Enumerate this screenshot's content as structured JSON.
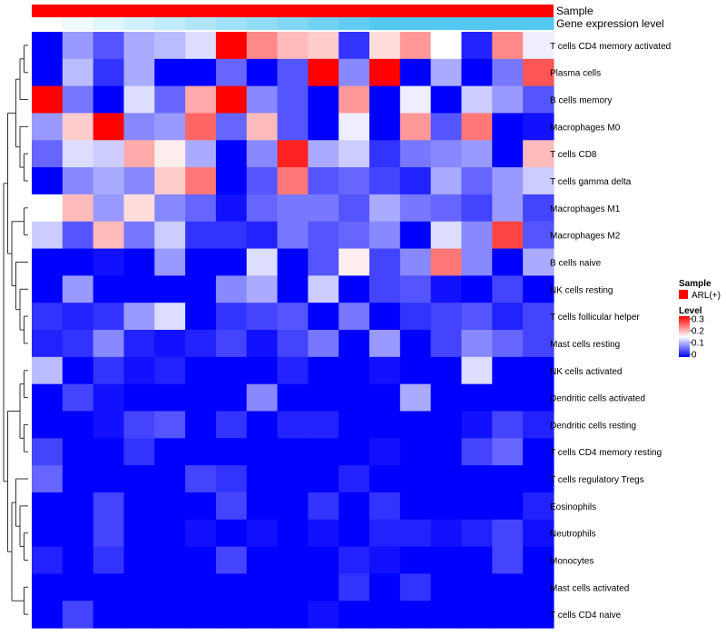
{
  "chart_data": {
    "type": "heatmap",
    "title": "",
    "annotation_tracks": [
      {
        "name": "Sample",
        "color": "#ff0000"
      },
      {
        "name": "Gene expression level",
        "gradient_start": "#ffffff",
        "gradient_end": "#53c8f0"
      }
    ],
    "rows": [
      "T cells CD4 memory activated",
      "Plasma cells",
      "B cells memory",
      "Macrophages M0",
      "T cells CD8",
      "T cells gamma delta",
      "Macrophages M1",
      "Macrophages M2",
      "B cells naive",
      "NK cells resting",
      "T cells follicular helper",
      "Mast cells resting",
      "NK cells activated",
      "Dendritic cells activated",
      "Dendritic cells resting",
      "T cells CD4 memory resting",
      "T cells regulatory  Tregs",
      "Eosinophils",
      "Neutrophils",
      "Monocytes",
      "Mast cells activated",
      "T cells CD4 naive"
    ],
    "n_columns": 17,
    "values": [
      [
        0.0,
        0.09,
        0.05,
        0.1,
        0.11,
        0.13,
        0.3,
        0.22,
        0.19,
        0.18,
        0.03,
        0.17,
        0.21,
        0.15,
        0.02,
        0.22,
        0.14
      ],
      [
        0.0,
        0.11,
        0.03,
        0.1,
        0.0,
        0.0,
        0.06,
        0.0,
        0.05,
        0.3,
        0.08,
        0.3,
        0.0,
        0.1,
        0.0,
        0.07,
        0.25
      ],
      [
        0.3,
        0.07,
        0.0,
        0.13,
        0.06,
        0.2,
        0.3,
        0.08,
        0.05,
        0.0,
        0.21,
        0.0,
        0.14,
        0.0,
        0.12,
        0.09,
        0.05
      ],
      [
        0.09,
        0.18,
        0.3,
        0.08,
        0.09,
        0.24,
        0.06,
        0.19,
        0.05,
        0.0,
        0.14,
        0.0,
        0.21,
        0.05,
        0.23,
        0.0,
        0.01
      ],
      [
        0.06,
        0.13,
        0.12,
        0.2,
        0.16,
        0.1,
        0.0,
        0.08,
        0.28,
        0.1,
        0.12,
        0.03,
        0.07,
        0.08,
        0.09,
        0.0,
        0.19
      ],
      [
        0.0,
        0.08,
        0.1,
        0.08,
        0.18,
        0.23,
        0.0,
        0.05,
        0.23,
        0.05,
        0.06,
        0.04,
        0.02,
        0.1,
        0.06,
        0.09,
        0.12
      ],
      [
        0.15,
        0.19,
        0.09,
        0.17,
        0.08,
        0.06,
        0.01,
        0.06,
        0.07,
        0.07,
        0.05,
        0.1,
        0.07,
        0.06,
        0.04,
        0.09,
        0.04
      ],
      [
        0.12,
        0.05,
        0.19,
        0.07,
        0.12,
        0.03,
        0.03,
        0.02,
        0.07,
        0.05,
        0.06,
        0.08,
        0.0,
        0.13,
        0.08,
        0.26,
        0.05
      ],
      [
        0.0,
        0.0,
        0.01,
        0.0,
        0.09,
        0.0,
        0.0,
        0.13,
        0.0,
        0.05,
        0.16,
        0.04,
        0.08,
        0.23,
        0.08,
        0.0,
        0.1
      ],
      [
        0.0,
        0.09,
        0.0,
        0.0,
        0.0,
        0.0,
        0.08,
        0.1,
        0.0,
        0.12,
        0.0,
        0.04,
        0.05,
        0.01,
        0.0,
        0.04,
        0.0
      ],
      [
        0.03,
        0.02,
        0.03,
        0.09,
        0.13,
        0.0,
        0.03,
        0.04,
        0.05,
        0.0,
        0.07,
        0.0,
        0.03,
        0.04,
        0.05,
        0.02,
        0.04
      ],
      [
        0.02,
        0.03,
        0.08,
        0.02,
        0.01,
        0.02,
        0.04,
        0.01,
        0.04,
        0.07,
        0.0,
        0.09,
        0.0,
        0.04,
        0.08,
        0.06,
        0.04
      ],
      [
        0.11,
        0.0,
        0.03,
        0.01,
        0.02,
        0.0,
        0.0,
        0.0,
        0.02,
        0.0,
        0.0,
        0.01,
        0.0,
        0.0,
        0.13,
        0.0,
        0.0
      ],
      [
        0.0,
        0.04,
        0.01,
        0.0,
        0.0,
        0.0,
        0.0,
        0.08,
        0.0,
        0.0,
        0.0,
        0.0,
        0.1,
        0.0,
        0.0,
        0.0,
        0.0
      ],
      [
        0.0,
        0.0,
        0.01,
        0.04,
        0.05,
        0.0,
        0.03,
        0.0,
        0.02,
        0.02,
        0.0,
        0.0,
        0.0,
        0.0,
        0.01,
        0.04,
        0.02
      ],
      [
        0.04,
        0.0,
        0.0,
        0.03,
        0.0,
        0.0,
        0.0,
        0.0,
        0.0,
        0.0,
        0.0,
        0.01,
        0.0,
        0.0,
        0.04,
        0.06,
        0.0
      ],
      [
        0.06,
        0.0,
        0.0,
        0.0,
        0.0,
        0.04,
        0.03,
        0.0,
        0.0,
        0.0,
        0.02,
        0.0,
        0.0,
        0.0,
        0.0,
        0.0,
        0.0
      ],
      [
        0.0,
        0.0,
        0.04,
        0.0,
        0.0,
        0.0,
        0.04,
        0.0,
        0.0,
        0.03,
        0.0,
        0.03,
        0.0,
        0.0,
        0.0,
        0.0,
        0.02
      ],
      [
        0.0,
        0.0,
        0.04,
        0.0,
        0.0,
        0.01,
        0.0,
        0.01,
        0.0,
        0.01,
        0.0,
        0.02,
        0.02,
        0.01,
        0.02,
        0.04,
        0.01
      ],
      [
        0.02,
        0.0,
        0.03,
        0.0,
        0.0,
        0.0,
        0.04,
        0.0,
        0.0,
        0.0,
        0.02,
        0.01,
        0.0,
        0.0,
        0.0,
        0.04,
        0.0
      ],
      [
        0.0,
        0.0,
        0.0,
        0.0,
        0.0,
        0.0,
        0.0,
        0.0,
        0.0,
        0.0,
        0.03,
        0.0,
        0.03,
        0.0,
        0.0,
        0.0,
        0.0
      ],
      [
        0.0,
        0.04,
        0.0,
        0.0,
        0.0,
        0.0,
        0.0,
        0.0,
        0.0,
        0.01,
        0.0,
        0.0,
        0.0,
        0.0,
        0.0,
        0.0,
        0.0
      ]
    ],
    "color_scale": {
      "min": 0,
      "max": 0.3,
      "low_color": "#0000ff",
      "mid_color": "#ffffff",
      "high_color": "#ff0000"
    },
    "legend": {
      "sample_title": "Sample",
      "sample_entry": "ARL(+)",
      "sample_color": "#ff0000",
      "level_title": "Level",
      "level_ticks": [
        "0.3",
        "0.2",
        "0.1",
        "0"
      ]
    },
    "row_dendrogram": true
  }
}
